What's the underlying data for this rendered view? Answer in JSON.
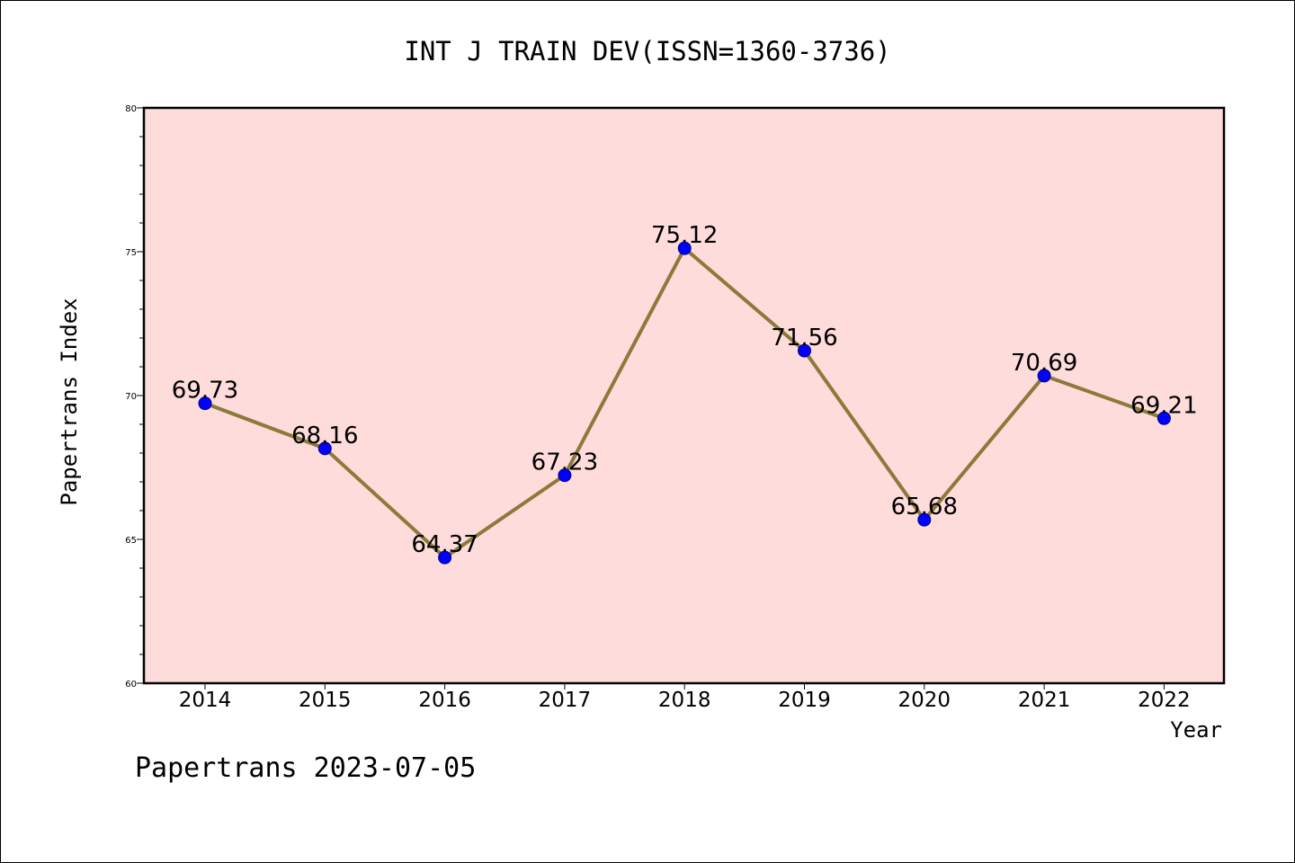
{
  "chart_data": {
    "type": "line",
    "title": "INT J TRAIN DEV(ISSN=1360-3736)",
    "xlabel": "Year",
    "ylabel": "Papertrans Index",
    "x": [
      "2014",
      "2015",
      "2016",
      "2017",
      "2018",
      "2019",
      "2020",
      "2021",
      "2022"
    ],
    "series": [
      {
        "values": [
          69.73,
          68.16,
          64.37,
          67.23,
          75.12,
          71.56,
          65.68,
          70.69,
          69.21
        ],
        "labels": [
          "69.73",
          "68.16",
          "64.37",
          "67.23",
          "75.12",
          "71.56",
          "65.68",
          "70.69",
          "69.21"
        ],
        "line_color": "#8b7a3a",
        "marker_color": "#0000ff"
      }
    ],
    "ylim": [
      60,
      80
    ],
    "yticks": [
      "60",
      "65",
      "70",
      "75",
      "80"
    ],
    "grid": false,
    "plot_background": "#fddcdb",
    "legend": "none"
  },
  "footer": "Papertrans 2023-07-05"
}
